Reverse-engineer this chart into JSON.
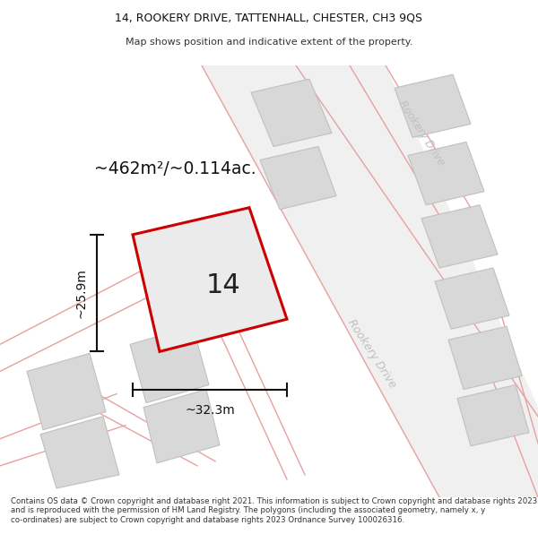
{
  "title": "14, ROOKERY DRIVE, TATTENHALL, CHESTER, CH3 9QS",
  "subtitle": "Map shows position and indicative extent of the property.",
  "footer": "Contains OS data © Crown copyright and database right 2021. This information is subject to Crown copyright and database rights 2023 and is reproduced with the permission of HM Land Registry. The polygons (including the associated geometry, namely x, y co-ordinates) are subject to Crown copyright and database rights 2023 Ordnance Survey 100026316.",
  "area_label": "~462m²/~0.114ac.",
  "width_label": "~32.3m",
  "height_label": "~25.9m",
  "plot_number": "14",
  "highlight_color": "#cc0000",
  "building_fill": "#d8d8d8",
  "building_stroke": "#c0c0c0",
  "road_line_color": "#e8a0a0",
  "road_label_color": "#c0c0c0",
  "dim_color": "#111111",
  "map_bg": "#f2f2f2"
}
